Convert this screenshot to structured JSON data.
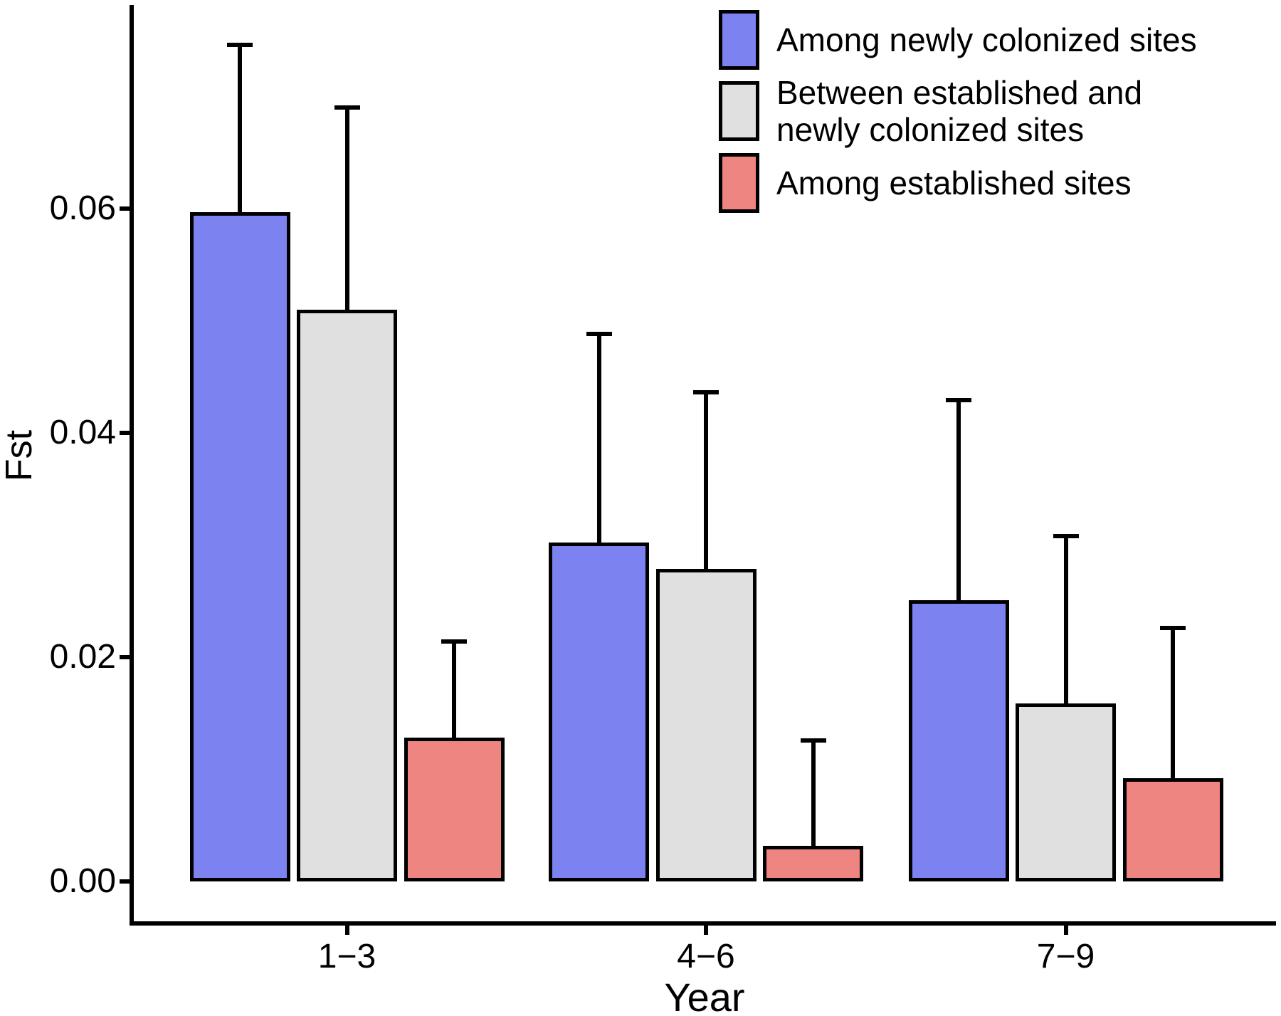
{
  "figure": {
    "background": "#ffffff",
    "axis_color": "#000000",
    "text_color": "#000000"
  },
  "chart_data": {
    "type": "bar",
    "title": "",
    "xlabel": "Year",
    "ylabel": "Fst",
    "categories": [
      "1−3",
      "4−6",
      "7−9"
    ],
    "ytick_values": [
      0,
      0.02,
      0.04,
      0.06
    ],
    "ytick_labels": [
      "0.00",
      "0.02",
      "0.04",
      "0.06"
    ],
    "ylim": [
      0,
      0.0786
    ],
    "grid": false,
    "legend_position": "top-right",
    "bar_outline_color": "#000000",
    "error_bar_color": "#000000",
    "series": [
      {
        "name": "Among newly colonized sites",
        "color": "#7C82F0",
        "values": [
          0.0597,
          0.0302,
          0.0251
        ],
        "error_top": [
          0.0746,
          0.0488,
          0.0429
        ]
      },
      {
        "name": "Between established and newly colonized sites",
        "color": "#E0E0E0",
        "values": [
          0.051,
          0.0279,
          0.0159
        ],
        "error_top": [
          0.069,
          0.0436,
          0.0308
        ]
      },
      {
        "name": "Among established sites",
        "color": "#EF8581",
        "values": [
          0.0128,
          0.0032,
          0.0092
        ],
        "error_top": [
          0.0214,
          0.0126,
          0.0226
        ]
      }
    ]
  }
}
